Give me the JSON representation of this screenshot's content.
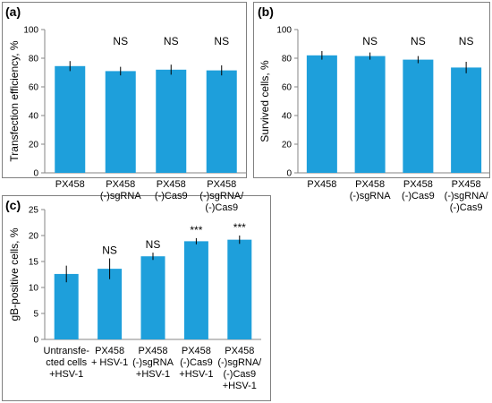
{
  "colors": {
    "bar": "#1e9fdb",
    "axis": "#868686",
    "error": "#000000",
    "frame": "#808080"
  },
  "chart_data": [
    {
      "panel": "(a)",
      "type": "bar",
      "ylabel": "Transfection efficiency, %",
      "ylim": [
        0,
        100
      ],
      "yticks": [
        "0",
        "20",
        "40",
        "60",
        "80",
        "100"
      ],
      "categories": [
        [
          "PX458"
        ],
        [
          "PX458",
          "(-)sgRNA"
        ],
        [
          "PX458",
          "(-)Cas9"
        ],
        [
          "PX458",
          "(-)sgRNA/",
          "(-)Cas9"
        ]
      ],
      "values": [
        74.5,
        71,
        72,
        71.5
      ],
      "errors": [
        3.5,
        3,
        3.5,
        3.5
      ],
      "significance": [
        "",
        "NS",
        "NS",
        "NS"
      ],
      "grid": false
    },
    {
      "panel": "(b)",
      "type": "bar",
      "ylabel": "Survived cells, %",
      "ylim": [
        0,
        100
      ],
      "yticks": [
        "0",
        "20",
        "40",
        "60",
        "80",
        "100"
      ],
      "categories": [
        [
          "PX458"
        ],
        [
          "PX458",
          "(-)sgRNA"
        ],
        [
          "PX458",
          "(-)Cas9"
        ],
        [
          "PX458",
          "(-)sgRNA/",
          "(-)Cas9"
        ]
      ],
      "values": [
        82,
        81.5,
        79,
        73.5
      ],
      "errors": [
        3,
        2.5,
        2.5,
        4
      ],
      "significance": [
        "",
        "NS",
        "NS",
        "NS"
      ],
      "grid": false
    },
    {
      "panel": "(c)",
      "type": "bar",
      "ylabel": "gB-positive cells, %",
      "ylim": [
        0,
        25
      ],
      "yticks": [
        "0",
        "5",
        "10",
        "15",
        "20",
        "25"
      ],
      "categories": [
        [
          "Untransfe-",
          "cted cells",
          "+HSV-1"
        ],
        [
          "PX458",
          "+ HSV-1"
        ],
        [
          "PX458",
          "(-)sgRNA",
          "+HSV-1"
        ],
        [
          "PX458",
          "(-)Cas9",
          "+HSV-1"
        ],
        [
          "PX458",
          "(-)sgRNA/",
          "(-)Cas9",
          "+HSV-1"
        ]
      ],
      "values": [
        12.6,
        13.6,
        16.0,
        18.9,
        19.2
      ],
      "errors": [
        1.6,
        2.0,
        0.7,
        0.6,
        0.8
      ],
      "significance": [
        "",
        "NS",
        "NS",
        "***",
        "***"
      ],
      "grid": false
    }
  ]
}
